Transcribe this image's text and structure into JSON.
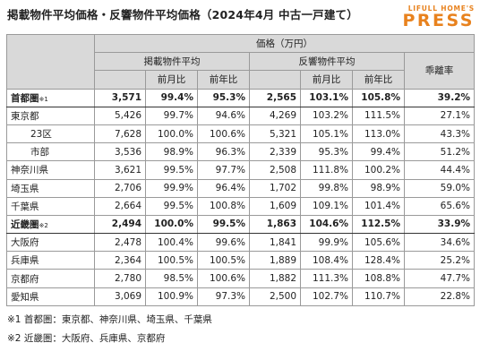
{
  "title": "掲載物件平均価格・反響物件平均価格（2024年4月 中古一戸建て）",
  "logo": {
    "top": "LIFULL HOME'S",
    "main": "PRESS",
    "color": "#e8821e"
  },
  "header": {
    "price": "価格（万円）",
    "listing_avg": "掲載物件平均",
    "response_avg": "反響物件平均",
    "divergence": "乖離率",
    "mom": "前月比",
    "yoy": "前年比"
  },
  "rows": [
    {
      "label": "首都圏",
      "note": "※1",
      "bold": true,
      "indent": false,
      "l_price": "3,571",
      "l_mom": "99.4%",
      "l_yoy": "95.3%",
      "r_price": "2,565",
      "r_mom": "103.1%",
      "r_yoy": "105.8%",
      "div": "39.2%"
    },
    {
      "label": "東京都",
      "note": "",
      "bold": false,
      "indent": false,
      "l_price": "5,426",
      "l_mom": "99.7%",
      "l_yoy": "94.6%",
      "r_price": "4,269",
      "r_mom": "103.2%",
      "r_yoy": "111.5%",
      "div": "27.1%"
    },
    {
      "label": "23区",
      "note": "",
      "bold": false,
      "indent": true,
      "l_price": "7,628",
      "l_mom": "100.0%",
      "l_yoy": "100.6%",
      "r_price": "5,321",
      "r_mom": "105.1%",
      "r_yoy": "113.0%",
      "div": "43.3%"
    },
    {
      "label": "市部",
      "note": "",
      "bold": false,
      "indent": true,
      "l_price": "3,536",
      "l_mom": "98.9%",
      "l_yoy": "96.3%",
      "r_price": "2,339",
      "r_mom": "95.3%",
      "r_yoy": "99.4%",
      "div": "51.2%"
    },
    {
      "label": "神奈川県",
      "note": "",
      "bold": false,
      "indent": false,
      "l_price": "3,621",
      "l_mom": "99.5%",
      "l_yoy": "97.7%",
      "r_price": "2,508",
      "r_mom": "111.8%",
      "r_yoy": "100.2%",
      "div": "44.4%"
    },
    {
      "label": "埼玉県",
      "note": "",
      "bold": false,
      "indent": false,
      "l_price": "2,706",
      "l_mom": "99.9%",
      "l_yoy": "96.4%",
      "r_price": "1,702",
      "r_mom": "99.8%",
      "r_yoy": "98.9%",
      "div": "59.0%"
    },
    {
      "label": "千葉県",
      "note": "",
      "bold": false,
      "indent": false,
      "l_price": "2,664",
      "l_mom": "99.5%",
      "l_yoy": "100.8%",
      "r_price": "1,609",
      "r_mom": "109.1%",
      "r_yoy": "101.4%",
      "div": "65.6%"
    },
    {
      "label": "近畿圏",
      "note": "※2",
      "bold": true,
      "indent": false,
      "l_price": "2,494",
      "l_mom": "100.0%",
      "l_yoy": "99.5%",
      "r_price": "1,863",
      "r_mom": "104.6%",
      "r_yoy": "112.5%",
      "div": "33.9%"
    },
    {
      "label": "大阪府",
      "note": "",
      "bold": false,
      "indent": false,
      "l_price": "2,478",
      "l_mom": "100.4%",
      "l_yoy": "99.6%",
      "r_price": "1,841",
      "r_mom": "99.9%",
      "r_yoy": "105.6%",
      "div": "34.6%"
    },
    {
      "label": "兵庫県",
      "note": "",
      "bold": false,
      "indent": false,
      "l_price": "2,364",
      "l_mom": "100.5%",
      "l_yoy": "100.5%",
      "r_price": "1,889",
      "r_mom": "108.4%",
      "r_yoy": "128.4%",
      "div": "25.2%"
    },
    {
      "label": "京都府",
      "note": "",
      "bold": false,
      "indent": false,
      "l_price": "2,780",
      "l_mom": "98.5%",
      "l_yoy": "100.6%",
      "r_price": "1,882",
      "r_mom": "111.3%",
      "r_yoy": "108.8%",
      "div": "47.7%"
    },
    {
      "label": "愛知県",
      "note": "",
      "bold": false,
      "indent": false,
      "l_price": "3,069",
      "l_mom": "100.9%",
      "l_yoy": "97.3%",
      "r_price": "2,500",
      "r_mom": "102.7%",
      "r_yoy": "110.7%",
      "div": "22.8%"
    }
  ],
  "notes": [
    "※1 首都圏：東京都、神奈川県、埼玉県、千葉県",
    "※2 近畿圏：大阪府、兵庫県、京都府"
  ]
}
